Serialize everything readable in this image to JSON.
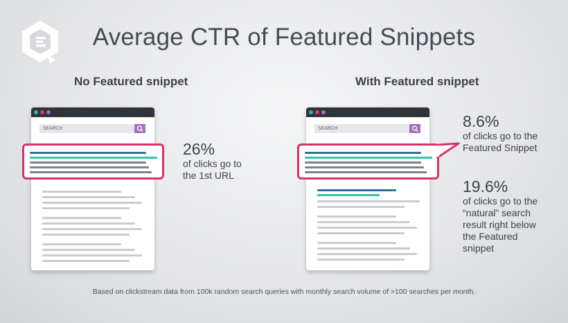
{
  "title": "Average CTR of Featured Snippets",
  "logo": {
    "icon": "contently-logo-icon",
    "color": "#ffffff"
  },
  "panels": [
    {
      "heading": "No Featured snippet",
      "search_placeholder": "SEARCH",
      "stats": [
        {
          "value": "26%",
          "text": "of clicks go to\nthe 1st URL"
        }
      ]
    },
    {
      "heading": "With Featured snippet",
      "search_placeholder": "SEARCH",
      "stats": [
        {
          "value": "8.6%",
          "text": "of clicks go to the\nFeatured Snippet"
        },
        {
          "value": "19.6%",
          "text": "of clicks go to the\n“natural” search\nresult right below\nthe Featured\nsnippet"
        }
      ]
    }
  ],
  "footnote": "Based on clickstream data from 100k random search queries with monthly search volume of >100 searches per month.",
  "colors": {
    "highlight": "#d9306a",
    "blue_line": "#2f6f9e",
    "green_line": "#33c3a5",
    "gray_line": "#7b8089",
    "light_line": "#c9cbcf",
    "search_button": "#a46dbf",
    "dot_teal": "#2bb7b0",
    "dot_red": "#e0346a",
    "dot_purple": "#a46dbf"
  }
}
